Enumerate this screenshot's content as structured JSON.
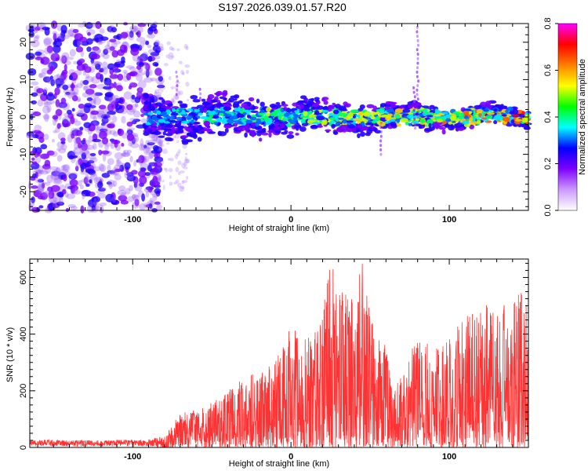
{
  "title": "S197.2026.039.01.57.R20",
  "chart_data": [
    {
      "type": "heatmap",
      "title": "S197.2026.039.01.57.R20",
      "xlabel": "Height of straight line (km)",
      "ylabel": "Frequency (Hz)",
      "xlim": [
        -165,
        150
      ],
      "ylim": [
        -25,
        25
      ],
      "xticks": [
        -100,
        0,
        100
      ],
      "yticks": [
        -20,
        -10,
        0,
        10,
        20
      ],
      "colorbar": {
        "label": "Normalized spectral amplitude",
        "range": [
          0.0,
          0.8
        ],
        "ticks": [
          "0.0",
          "0.2",
          "0.4",
          "0.6",
          "0.8"
        ],
        "colors": [
          "#ffffff",
          "#cc99ff",
          "#7f00ff",
          "#0000ff",
          "#00ffff",
          "#00ff00",
          "#ffff00",
          "#ff7f00",
          "#ff0000",
          "#ff00ff"
        ]
      },
      "description_of_content": "Noise cloud below -80 km; spectral ridge near 0 Hz from -90 km to 150 km"
    },
    {
      "type": "line",
      "xlabel": "Height of straight line (km)",
      "ylabel": "SNR (10 * v/v)",
      "xlim": [
        -165,
        150
      ],
      "ylim": [
        0,
        665
      ],
      "xticks": [
        -100,
        0,
        100
      ],
      "yticks": [
        0,
        200,
        400,
        600
      ],
      "color": "#ff3333",
      "envelope": {
        "x": [
          -165,
          -120,
          -90,
          -80,
          -70,
          -60,
          -50,
          -40,
          -30,
          -20,
          -10,
          0,
          10,
          20,
          25,
          30,
          40,
          45,
          50,
          55,
          60,
          65,
          70,
          80,
          90,
          100,
          110,
          120,
          130,
          140,
          145,
          150
        ],
        "y": [
          28,
          25,
          28,
          40,
          120,
          135,
          160,
          200,
          250,
          270,
          300,
          430,
          380,
          480,
          665,
          560,
          520,
          660,
          480,
          440,
          350,
          190,
          290,
          380,
          360,
          380,
          470,
          500,
          520,
          500,
          590,
          480
        ]
      }
    }
  ]
}
